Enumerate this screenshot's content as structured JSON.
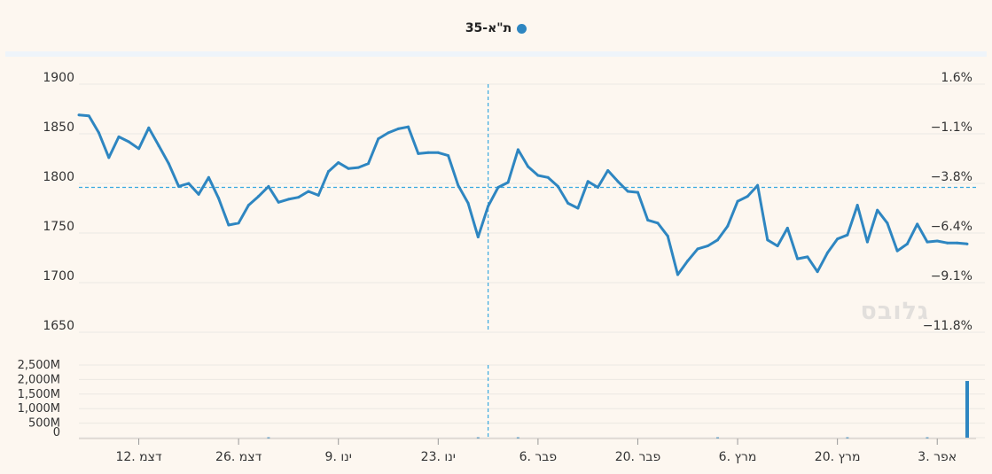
{
  "legend": {
    "label": "ת\"א-35",
    "color": "#2e86c1"
  },
  "watermark": "גלובס",
  "chart_data": {
    "type": "line",
    "series": [
      {
        "name": "ת\"א-35",
        "color": "#2e86c1",
        "values": [
          1869,
          1868,
          1851,
          1826,
          1847,
          1842,
          1835,
          1856,
          1838,
          1820,
          1797,
          1800,
          1789,
          1806,
          1785,
          1758,
          1760,
          1778,
          1787,
          1797,
          1781,
          1784,
          1786,
          1792,
          1788,
          1812,
          1821,
          1815,
          1816,
          1820,
          1845,
          1851,
          1855,
          1857,
          1830,
          1831,
          1831,
          1828,
          1798,
          1780,
          1746,
          1777,
          1796,
          1801,
          1834,
          1817,
          1808,
          1806,
          1797,
          1780,
          1775,
          1802,
          1796,
          1813,
          1802,
          1792,
          1791,
          1763,
          1760,
          1747,
          1708,
          1722,
          1734,
          1737,
          1743,
          1757,
          1782,
          1787,
          1798,
          1743,
          1737,
          1755,
          1724,
          1726,
          1711,
          1730,
          1744,
          1748,
          1778,
          1741,
          1773,
          1760,
          1732,
          1739,
          1759,
          1741,
          1742,
          1740,
          1740,
          1739
        ],
        "volume_values": [
          0,
          0,
          0,
          0,
          0,
          0,
          0,
          0,
          0,
          0,
          0,
          0,
          0,
          0,
          0,
          0,
          0,
          0,
          0,
          12,
          0,
          0,
          0,
          0,
          0,
          0,
          0,
          0,
          0,
          0,
          0,
          0,
          0,
          0,
          0,
          0,
          0,
          0,
          0,
          0,
          12,
          0,
          0,
          0,
          12,
          0,
          0,
          0,
          0,
          0,
          0,
          0,
          0,
          0,
          0,
          0,
          0,
          0,
          0,
          0,
          0,
          0,
          0,
          0,
          12,
          0,
          0,
          0,
          0,
          0,
          0,
          0,
          0,
          0,
          0,
          0,
          0,
          12,
          0,
          0,
          0,
          0,
          0,
          0,
          0,
          12,
          0,
          0,
          0,
          1950
        ]
      }
    ],
    "x_tick_labels": [
      "12. דצמ",
      "26. דצמ",
      "9. ינו",
      "23. ינו",
      "6. פבר",
      "20. פבר",
      "6. מרץ",
      "20. מרץ",
      "3. אפר"
    ],
    "x_tick_positions": [
      6,
      16,
      26,
      36,
      46,
      56,
      66,
      76,
      86
    ],
    "y_left_ticks": [
      "1900",
      "1850",
      "1800",
      "1750",
      "1700",
      "1650"
    ],
    "y_left_values": [
      1900,
      1850,
      1800,
      1750,
      1700,
      1650
    ],
    "ylim": [
      1650,
      1900
    ],
    "y_right_ticks": [
      "1.6%",
      "−1.1%",
      "−3.8%",
      "−6.4%",
      "−9.1%",
      "−11.8%"
    ],
    "volume_ticks": [
      "2,500M",
      "2,000M",
      "1,500M",
      "1,000M",
      "500M",
      "0"
    ],
    "volume_values_axis": [
      2500,
      2000,
      1500,
      1000,
      500,
      0
    ],
    "volume_ylim": [
      0,
      2500
    ],
    "crosshair": {
      "index": 41,
      "y": 1796
    },
    "grid": true
  }
}
